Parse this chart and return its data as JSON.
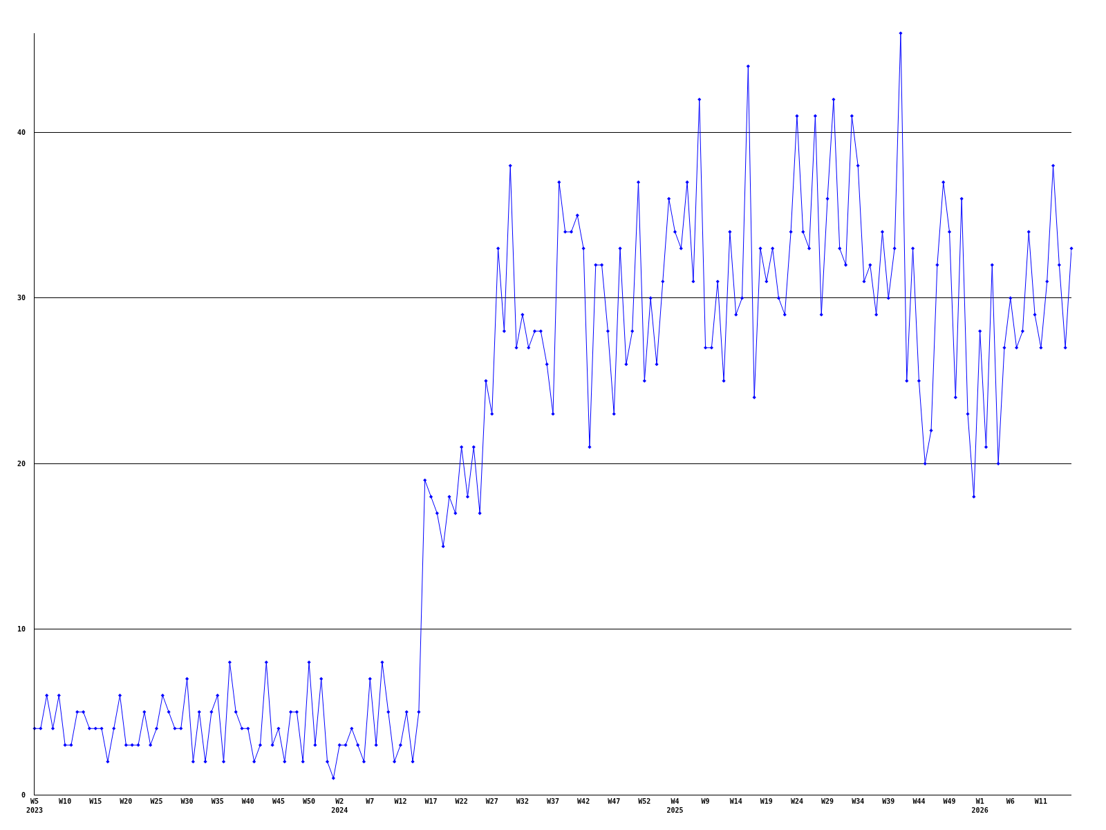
{
  "chart_data": {
    "type": "line",
    "categories": [
      "W5\n2023",
      null,
      null,
      null,
      null,
      "W10",
      null,
      null,
      null,
      null,
      "W15",
      null,
      null,
      null,
      null,
      "W20",
      null,
      null,
      null,
      null,
      "W25",
      null,
      null,
      null,
      null,
      "W30",
      null,
      null,
      null,
      null,
      "W35",
      null,
      null,
      null,
      null,
      "W40",
      null,
      null,
      null,
      null,
      "W45",
      null,
      null,
      null,
      null,
      "W50",
      null,
      null,
      null,
      null,
      "W2\n2024",
      null,
      null,
      null,
      null,
      "W7",
      null,
      null,
      null,
      null,
      "W12",
      null,
      null,
      null,
      null,
      "W17",
      null,
      null,
      null,
      null,
      "W22",
      null,
      null,
      null,
      null,
      "W27",
      null,
      null,
      null,
      null,
      "W32",
      null,
      null,
      null,
      null,
      "W37",
      null,
      null,
      null,
      null,
      "W42",
      null,
      null,
      null,
      null,
      "W47",
      null,
      null,
      null,
      null,
      "W52",
      null,
      null,
      null,
      null,
      "W4\n2025",
      null,
      null,
      null,
      null,
      "W9",
      null,
      null,
      null,
      null,
      "W14",
      null,
      null,
      null,
      null,
      "W19",
      null,
      null,
      null,
      null,
      "W24",
      null,
      null,
      null,
      null,
      "W29",
      null,
      null,
      null,
      null,
      "W34",
      null,
      null,
      null,
      null,
      "W39",
      null,
      null,
      null,
      null,
      "W44",
      null,
      null,
      null,
      null,
      "W49",
      null,
      null,
      null,
      null,
      "W1\n2026",
      null,
      null,
      null,
      null,
      "W6",
      null,
      null,
      null,
      null,
      "W11",
      null,
      null,
      null,
      null,
      null
    ],
    "series": [
      {
        "color": "#0000ff",
        "values": [
          4,
          4,
          6,
          4,
          6,
          3,
          3,
          5,
          5,
          4,
          4,
          4,
          2,
          4,
          6,
          3,
          3,
          3,
          5,
          3,
          4,
          6,
          5,
          4,
          4,
          7,
          2,
          5,
          2,
          5,
          6,
          2,
          8,
          5,
          4,
          4,
          2,
          3,
          8,
          3,
          4,
          2,
          5,
          5,
          2,
          8,
          3,
          7,
          2,
          1,
          3,
          3,
          4,
          3,
          2,
          7,
          3,
          8,
          5,
          2,
          3,
          5,
          2,
          5,
          19,
          18,
          17,
          15,
          18,
          17,
          21,
          18,
          21,
          17,
          25,
          23,
          33,
          28,
          38,
          27,
          29,
          27,
          28,
          28,
          26,
          23,
          37,
          34,
          34,
          35,
          33,
          21,
          32,
          32,
          28,
          23,
          33,
          26,
          28,
          37,
          25,
          30,
          26,
          31,
          36,
          34,
          33,
          37,
          31,
          42,
          27,
          27,
          31,
          25,
          34,
          29,
          30,
          44,
          24,
          33,
          31,
          33,
          30,
          29,
          34,
          41,
          34,
          33,
          41,
          29,
          36,
          42,
          33,
          32,
          41,
          38,
          31,
          32,
          29,
          34,
          30,
          33,
          46,
          25,
          33,
          25,
          20,
          22,
          32,
          37,
          34,
          24,
          36,
          23,
          18,
          28,
          21,
          32,
          20,
          27,
          30,
          27,
          28,
          34,
          29,
          27,
          31,
          38,
          32,
          27,
          33
        ]
      }
    ],
    "ylim": [
      0,
      46
    ],
    "yticks": [
      0,
      10,
      20,
      30,
      40
    ],
    "grid": "y",
    "legend": false,
    "marker": "diamond",
    "line_style": "solid"
  }
}
